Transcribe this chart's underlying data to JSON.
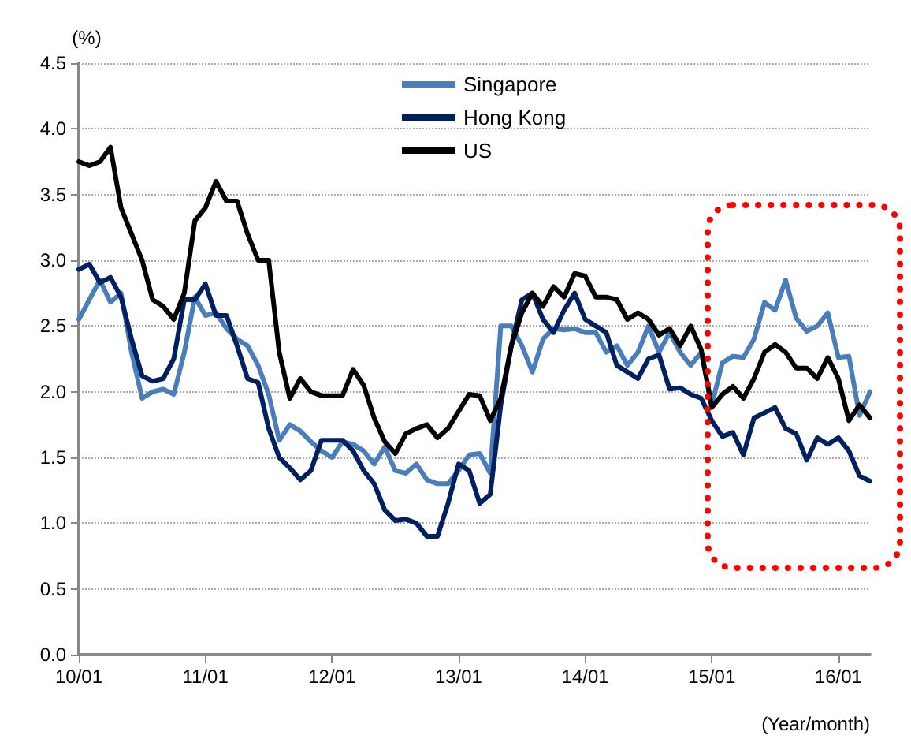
{
  "chart_data": {
    "type": "line",
    "ylabel": "(%)",
    "xlabel": "(Year/month)",
    "categories": [
      "10/01",
      null,
      null,
      null,
      null,
      null,
      null,
      null,
      null,
      null,
      null,
      null,
      "11/01",
      null,
      null,
      null,
      null,
      null,
      null,
      null,
      null,
      null,
      null,
      null,
      "12/01",
      null,
      null,
      null,
      null,
      null,
      null,
      null,
      null,
      null,
      null,
      null,
      "13/01",
      null,
      null,
      null,
      null,
      null,
      null,
      null,
      null,
      null,
      null,
      null,
      "14/01",
      null,
      null,
      null,
      null,
      null,
      null,
      null,
      null,
      null,
      null,
      null,
      "15/01",
      null,
      null,
      null,
      null,
      null,
      null,
      null,
      null,
      null,
      null,
      null,
      "16/01",
      null,
      null,
      null
    ],
    "series": [
      {
        "name": "Singapore",
        "color": "#4a7ebb",
        "values": [
          2.55,
          2.7,
          2.85,
          2.68,
          2.75,
          2.3,
          1.95,
          2.0,
          2.02,
          1.98,
          2.3,
          2.72,
          2.58,
          2.6,
          2.48,
          2.4,
          2.35,
          2.2,
          1.98,
          1.63,
          1.75,
          1.7,
          1.62,
          1.55,
          1.5,
          1.62,
          1.6,
          1.55,
          1.45,
          1.58,
          1.4,
          1.38,
          1.45,
          1.33,
          1.3,
          1.3,
          1.4,
          1.52,
          1.53,
          1.38,
          2.5,
          2.5,
          2.35,
          2.15,
          2.4,
          2.48,
          2.47,
          2.48,
          2.45,
          2.45,
          2.3,
          2.35,
          2.2,
          2.3,
          2.5,
          2.3,
          2.45,
          2.3,
          2.2,
          2.3,
          1.9,
          2.22,
          2.27,
          2.26,
          2.4,
          2.68,
          2.62,
          2.85,
          2.56,
          2.46,
          2.5,
          2.6,
          2.26,
          2.27,
          1.82,
          2.0
        ]
      },
      {
        "name": "Hong Kong",
        "color": "#002060",
        "values": [
          2.93,
          2.97,
          2.83,
          2.87,
          2.72,
          2.4,
          2.12,
          2.08,
          2.1,
          2.25,
          2.7,
          2.7,
          2.82,
          2.58,
          2.58,
          2.35,
          2.1,
          2.07,
          1.72,
          1.5,
          1.42,
          1.33,
          1.4,
          1.63,
          1.63,
          1.63,
          1.55,
          1.4,
          1.3,
          1.1,
          1.02,
          1.03,
          1.0,
          0.9,
          0.9,
          1.15,
          1.45,
          1.4,
          1.15,
          1.22,
          1.9,
          2.35,
          2.7,
          2.75,
          2.55,
          2.45,
          2.62,
          2.75,
          2.55,
          2.5,
          2.45,
          2.2,
          2.15,
          2.1,
          2.25,
          2.28,
          2.02,
          2.03,
          1.98,
          1.95,
          1.78,
          1.66,
          1.69,
          1.52,
          1.8,
          1.84,
          1.88,
          1.72,
          1.68,
          1.48,
          1.65,
          1.6,
          1.65,
          1.55,
          1.36,
          1.32
        ]
      },
      {
        "name": "US",
        "color": "#000000",
        "values": [
          3.75,
          3.72,
          3.75,
          3.86,
          3.4,
          3.2,
          3.0,
          2.7,
          2.65,
          2.55,
          2.75,
          3.3,
          3.4,
          3.6,
          3.45,
          3.45,
          3.2,
          3.0,
          3.0,
          2.3,
          1.95,
          2.1,
          2.0,
          1.97,
          1.97,
          1.97,
          2.17,
          2.05,
          1.8,
          1.62,
          1.53,
          1.68,
          1.72,
          1.75,
          1.65,
          1.72,
          1.85,
          1.98,
          1.97,
          1.78,
          1.95,
          2.35,
          2.6,
          2.75,
          2.65,
          2.8,
          2.72,
          2.9,
          2.88,
          2.72,
          2.72,
          2.7,
          2.55,
          2.6,
          2.55,
          2.43,
          2.48,
          2.35,
          2.5,
          2.32,
          1.88,
          1.98,
          2.04,
          1.95,
          2.1,
          2.3,
          2.36,
          2.3,
          2.18,
          2.18,
          2.1,
          2.26,
          2.1,
          1.78,
          1.9,
          1.8
        ]
      }
    ],
    "ylim": [
      0,
      4.5
    ],
    "yticks": [
      {
        "value": 0,
        "label": "0.0"
      },
      {
        "value": 0.5,
        "label": "0.5"
      },
      {
        "value": 1,
        "label": "1.0"
      },
      {
        "value": 1.5,
        "label": "1.5"
      },
      {
        "value": 2,
        "label": "2.0"
      },
      {
        "value": 2.5,
        "label": "2.5"
      },
      {
        "value": 3,
        "label": "3.0"
      },
      {
        "value": 3.5,
        "label": "3.5"
      },
      {
        "value": 4,
        "label": "4.0"
      },
      {
        "value": 4.5,
        "label": "4.5"
      }
    ],
    "grid": "y",
    "legend": "top",
    "marker": "none",
    "line_style": "solid"
  }
}
